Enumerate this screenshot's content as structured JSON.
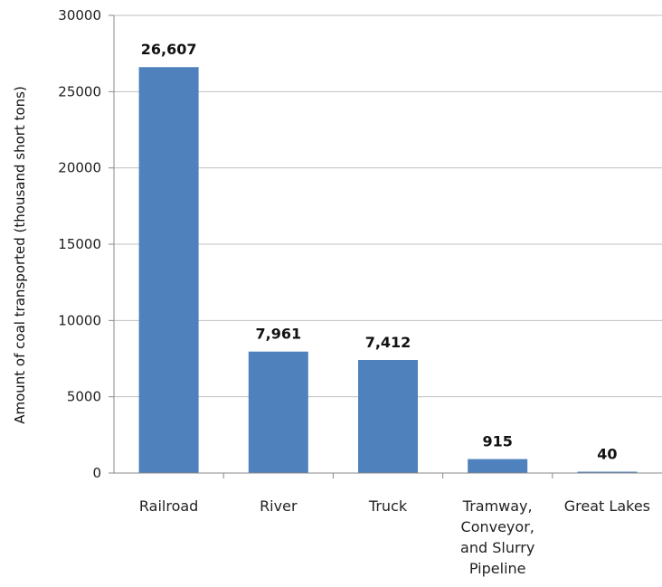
{
  "chart_data": {
    "type": "bar",
    "title": "",
    "xlabel": "",
    "ylabel": "Amount of coal transported (thousand short tons)",
    "ylim": [
      0,
      30000
    ],
    "yticks": [
      0,
      5000,
      10000,
      15000,
      20000,
      25000,
      30000
    ],
    "grid": true,
    "categories": [
      [
        "Railroad"
      ],
      [
        "River"
      ],
      [
        "Truck"
      ],
      [
        "Tramway,",
        "Conveyor,",
        "and Slurry",
        "Pipeline"
      ],
      [
        "Great Lakes"
      ]
    ],
    "values": [
      26607,
      7961,
      7412,
      915,
      40
    ],
    "data_labels": [
      "26,607",
      "7,961",
      "7,412",
      "915",
      "40"
    ],
    "bar_color": "#4F81BD"
  }
}
